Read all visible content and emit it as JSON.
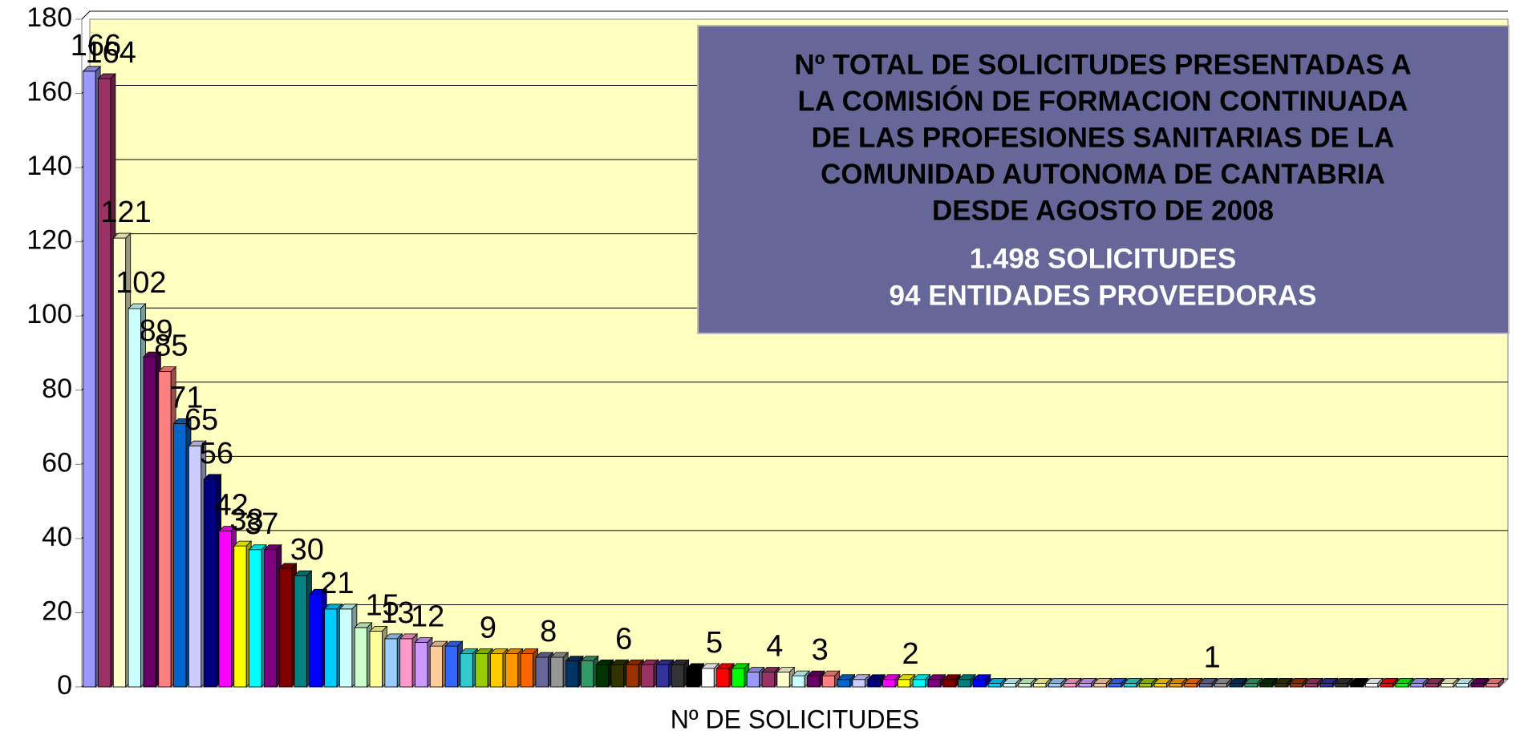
{
  "chart_data": {
    "type": "bar3d",
    "xlabel": "Nº DE SOLICITUDES",
    "annotation": {
      "title_lines": [
        "Nº TOTAL DE SOLICITUDES PRESENTADAS A",
        "LA COMISIÓN DE FORMACION CONTINUADA",
        "DE LAS PROFESIONES SANITARIAS DE LA",
        "COMUNIDAD AUTONOMA DE CANTABRIA",
        "DESDE AGOSTO DE 2008"
      ],
      "summary_lines": [
        "1.498 SOLICITUDES",
        "94 ENTIDADES PROVEEDORAS"
      ]
    },
    "values": [
      166,
      164,
      121,
      102,
      89,
      85,
      71,
      65,
      56,
      42,
      38,
      37,
      37,
      32,
      30,
      25,
      21,
      21,
      16,
      15,
      13,
      13,
      12,
      11,
      11,
      9,
      9,
      9,
      9,
      9,
      8,
      8,
      7,
      7,
      6,
      6,
      6,
      6,
      6,
      6,
      5,
      5,
      5,
      5,
      4,
      4,
      4,
      3,
      3,
      3,
      2,
      2,
      2,
      2,
      2,
      2,
      2,
      2,
      2,
      2,
      1,
      1,
      1,
      1,
      1,
      1,
      1,
      1,
      1,
      1,
      1,
      1,
      1,
      1,
      1,
      1,
      1,
      1,
      1,
      1,
      1,
      1,
      1,
      1,
      1,
      1,
      1,
      1,
      1,
      1,
      1,
      1,
      1,
      1
    ],
    "value_labels": [
      "166",
      "164",
      "121",
      "102",
      "89",
      "85",
      "71",
      "65",
      "56",
      "42",
      "38",
      "37",
      null,
      null,
      "30",
      null,
      "21",
      null,
      null,
      "15",
      "13",
      null,
      "12",
      null,
      null,
      null,
      "9",
      null,
      null,
      null,
      "8",
      null,
      null,
      null,
      null,
      "6",
      null,
      null,
      null,
      null,
      null,
      "5",
      null,
      null,
      null,
      "4",
      null,
      null,
      "3",
      null,
      null,
      null,
      null,
      null,
      "2",
      null,
      null,
      null,
      null,
      null,
      null,
      null,
      null,
      null,
      null,
      null,
      null,
      null,
      null,
      null,
      null,
      null,
      null,
      null,
      "1",
      null,
      null,
      null,
      null,
      null,
      null,
      null,
      null,
      null,
      null,
      null,
      null,
      null,
      null,
      null,
      null,
      null,
      null,
      null
    ],
    "colors": [
      "#9999ff",
      "#993366",
      "#ffffcc",
      "#ccffff",
      "#660066",
      "#ff8080",
      "#0066cc",
      "#ccccff",
      "#000080",
      "#ff00ff",
      "#ffff00",
      "#00ffff",
      "#800080",
      "#800000",
      "#008080",
      "#0000ff",
      "#00ccff",
      "#ccffff",
      "#ccffcc",
      "#ffff99",
      "#99ccff",
      "#ff99cc",
      "#cc99ff",
      "#ffcc99",
      "#3366ff",
      "#33cccc",
      "#99cc00",
      "#ffcc00",
      "#ff9900",
      "#ff6600",
      "#666699",
      "#969696",
      "#003366",
      "#339966",
      "#003300",
      "#333300",
      "#993300",
      "#993366",
      "#333399",
      "#333333",
      "#000000",
      "#ffffff",
      "#ff0000",
      "#00ff00"
    ],
    "ylim": [
      0,
      180
    ],
    "yticks": [
      0,
      20,
      40,
      60,
      80,
      100,
      120,
      140,
      160,
      180
    ],
    "grid": true,
    "background": "#ffffc0",
    "box_color": "#666699"
  }
}
